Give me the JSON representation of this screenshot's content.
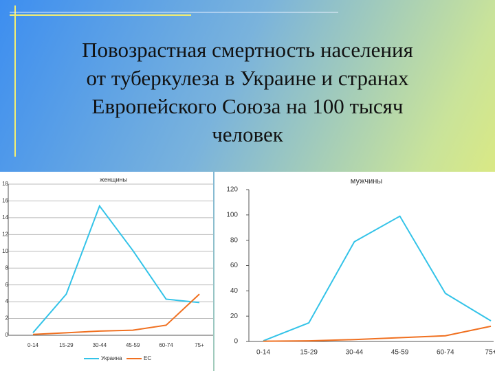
{
  "slide": {
    "title_lines": [
      "Повозрастная смертность населения",
      "от туберкулеза в Украине и странах",
      "Европейского Союза  на 100 тысяч",
      "человек"
    ]
  },
  "chart_data": [
    {
      "type": "line",
      "title": "женщины",
      "categories": [
        "0-14",
        "15-29",
        "30-44",
        "45-59",
        "60-74",
        "75+"
      ],
      "series": [
        {
          "name": "Украина",
          "color": "#33c3e8",
          "values": [
            0.3,
            4.9,
            15.4,
            10.1,
            4.3,
            3.9
          ]
        },
        {
          "name": "ЕС",
          "color": "#f07020",
          "values": [
            0.1,
            0.3,
            0.5,
            0.6,
            1.2,
            4.9
          ]
        }
      ],
      "ylim": [
        0,
        18
      ],
      "yticks": [
        0,
        2,
        4,
        6,
        8,
        10,
        12,
        14,
        16,
        18
      ],
      "grid": true,
      "legend": "bottom"
    },
    {
      "type": "line",
      "title": "мужчины",
      "categories": [
        "0-14",
        "15-29",
        "30-44",
        "45-59",
        "60-74",
        "75+"
      ],
      "series": [
        {
          "name": "Украина",
          "color": "#33c3e8",
          "values": [
            0.5,
            14.7,
            78.8,
            99,
            38,
            16.3
          ]
        },
        {
          "name": "ЕС",
          "color": "#f07020",
          "values": [
            0.2,
            0.5,
            1.5,
            3,
            4.5,
            12
          ]
        }
      ],
      "ylim": [
        0,
        120
      ],
      "yticks": [
        0,
        20,
        40,
        60,
        80,
        100,
        120
      ],
      "grid": false
    }
  ]
}
